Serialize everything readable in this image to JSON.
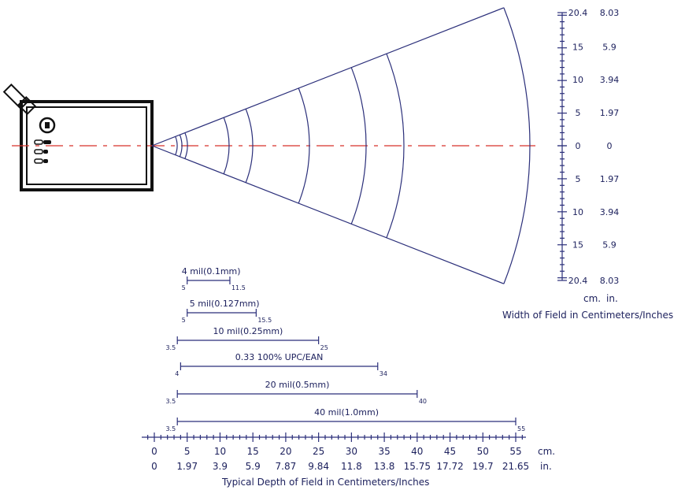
{
  "chart_data": {
    "type": "table",
    "width_scale": {
      "cm_ticks": [
        "20.4",
        "15",
        "10",
        "5",
        "0",
        "5",
        "10",
        "15",
        "20.4"
      ],
      "in_ticks": [
        "8.03",
        "5.9",
        "3.94",
        "1.97",
        "0",
        "1.97",
        "3.94",
        "5.9",
        "8.03"
      ],
      "unit_cm": "cm.",
      "unit_in": "in.",
      "label": "Width of Field in Centimeters/Inches"
    },
    "depth_scale": {
      "cm_ticks": [
        "0",
        "5",
        "10",
        "15",
        "20",
        "25",
        "30",
        "35",
        "40",
        "45",
        "50",
        "55"
      ],
      "in_ticks": [
        "0",
        "1.97",
        "3.9",
        "5.9",
        "7.87",
        "9.84",
        "11.8",
        "13.8",
        "15.75",
        "17.72",
        "19.7",
        "21.65"
      ],
      "unit_cm": "cm.",
      "unit_in": "in.",
      "label": "Typical Depth of Field in Centimeters/Inches"
    },
    "ranges": [
      {
        "label": "4 mil(0.1mm)",
        "min": 5,
        "max": 11.5,
        "min_text": "5",
        "max_text": "11.5"
      },
      {
        "label": "5 mil(0.127mm)",
        "min": 5,
        "max": 15.5,
        "min_text": "5",
        "max_text": "15.5"
      },
      {
        "label": "10 mil(0.25mm)",
        "min": 3.5,
        "max": 25,
        "min_text": "3.5",
        "max_text": "25"
      },
      {
        "label": "0.33 100% UPC/EAN",
        "min": 4,
        "max": 34,
        "min_text": "4",
        "max_text": "34"
      },
      {
        "label": "20 mil(0.5mm)",
        "min": 3.5,
        "max": 40,
        "min_text": "3.5",
        "max_text": "40"
      },
      {
        "label": "40 mil(1.0mm)",
        "min": 3.5,
        "max": 55,
        "min_text": "3.5",
        "max_text": "55"
      }
    ],
    "colors": {
      "lines": "#2b2f7a",
      "axis_dash": "#d8322a",
      "device": "#111111"
    }
  }
}
